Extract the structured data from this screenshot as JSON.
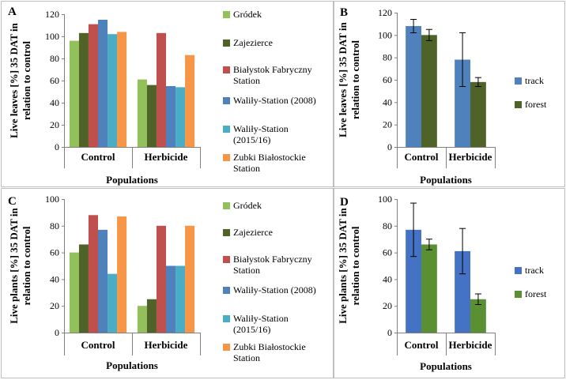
{
  "colors": {
    "Gródek": "#92c05a",
    "Zajezierce": "#4f6228",
    "Białystok Fabryczny Station": "#c0504d",
    "Waliły-Station (2008)": "#4f81bd",
    "Waliły-Station (2015/16)": "#4bacc6",
    "Zubki Białostockie Station": "#f79646",
    "track": "#4f81bd",
    "forest_B": "#4f6228",
    "track_D": "#4472c4",
    "forest_D": "#5a8f32"
  },
  "chart_data": [
    {
      "id": "A",
      "letter": "A",
      "type": "bar",
      "ylabel_line1": "Live leaves [%] 35 DAT in",
      "ylabel_line2": "relation to control",
      "xlabel": "Populations",
      "categories": [
        "Control",
        "Herbicide"
      ],
      "ylim": [
        0,
        120
      ],
      "yticks": [
        "0",
        "20",
        "40",
        "60",
        "80",
        "100",
        "120"
      ],
      "series": [
        {
          "name": "Gródek",
          "legend": [
            "Gródek"
          ],
          "values": [
            96,
            61
          ]
        },
        {
          "name": "Zajezierce",
          "legend": [
            "Zajezierce"
          ],
          "values": [
            103,
            56
          ]
        },
        {
          "name": "Białystok Fabryczny Station",
          "legend": [
            "Białystok Fabryczny",
            "Station"
          ],
          "values": [
            111,
            103
          ]
        },
        {
          "name": "Waliły-Station (2008)",
          "legend": [
            "Waliły-Station (2008)"
          ],
          "values": [
            115,
            55
          ]
        },
        {
          "name": "Waliły-Station (2015/16)",
          "legend": [
            "Waliły-Station",
            "(2015/16)"
          ],
          "values": [
            102,
            54
          ]
        },
        {
          "name": "Zubki Białostockie Station",
          "legend": [
            "Zubki Białostockie",
            "Station"
          ],
          "values": [
            104,
            83
          ]
        }
      ]
    },
    {
      "id": "B",
      "letter": "B",
      "type": "bar",
      "ylabel_line1": "Live leaves [%] 35 DAT in",
      "ylabel_line2": "relation to control",
      "xlabel": "Populations",
      "categories": [
        "Control",
        "Herbicide"
      ],
      "ylim": [
        0,
        120
      ],
      "yticks": [
        "0",
        "20",
        "40",
        "60",
        "80",
        "100",
        "120"
      ],
      "series": [
        {
          "name": "track",
          "legend": [
            "track"
          ],
          "color_key": "track",
          "values": [
            108,
            78
          ],
          "errors": [
            6,
            24
          ]
        },
        {
          "name": "forest",
          "legend": [
            "forest"
          ],
          "color_key": "forest_B",
          "values": [
            100,
            58
          ],
          "errors": [
            5,
            4
          ]
        }
      ]
    },
    {
      "id": "C",
      "letter": "C",
      "type": "bar",
      "ylabel_line1": "Live plants [%] 35 DAT in",
      "ylabel_line2": "relation to control",
      "xlabel": "Populations",
      "categories": [
        "Control",
        "Herbicide"
      ],
      "ylim": [
        0,
        100
      ],
      "yticks": [
        "0",
        "20",
        "40",
        "60",
        "80",
        "100"
      ],
      "series": [
        {
          "name": "Gródek",
          "legend": [
            "Gródek"
          ],
          "values": [
            60,
            20
          ]
        },
        {
          "name": "Zajezierce",
          "legend": [
            "Zajezierce"
          ],
          "values": [
            66,
            25
          ]
        },
        {
          "name": "Białystok Fabryczny Station",
          "legend": [
            "Białystok Fabryczny",
            "Station"
          ],
          "values": [
            88,
            80
          ]
        },
        {
          "name": "Waliły-Station (2008)",
          "legend": [
            "Waliły-Station (2008)"
          ],
          "values": [
            77,
            50
          ]
        },
        {
          "name": "Waliły-Station (2015/16)",
          "legend": [
            "Waliły-Station",
            "(2015/16)"
          ],
          "values": [
            44,
            50
          ]
        },
        {
          "name": "Zubki Białostockie Station",
          "legend": [
            "Zubki Białostockie",
            "Station"
          ],
          "values": [
            87,
            80
          ]
        }
      ]
    },
    {
      "id": "D",
      "letter": "D",
      "type": "bar",
      "ylabel_line1": "Live plants [%] 35 DAT in",
      "ylabel_line2": "relation to control",
      "xlabel": "Populations",
      "categories": [
        "Control",
        "Herbicide"
      ],
      "ylim": [
        0,
        100
      ],
      "yticks": [
        "0",
        "20",
        "40",
        "60",
        "80",
        "100"
      ],
      "series": [
        {
          "name": "track",
          "legend": [
            "track"
          ],
          "color_key": "track_D",
          "values": [
            77,
            61
          ],
          "errors": [
            20,
            17
          ]
        },
        {
          "name": "forest",
          "legend": [
            "forest"
          ],
          "color_key": "forest_D",
          "values": [
            66,
            25
          ],
          "errors": [
            4,
            4
          ]
        }
      ]
    }
  ]
}
